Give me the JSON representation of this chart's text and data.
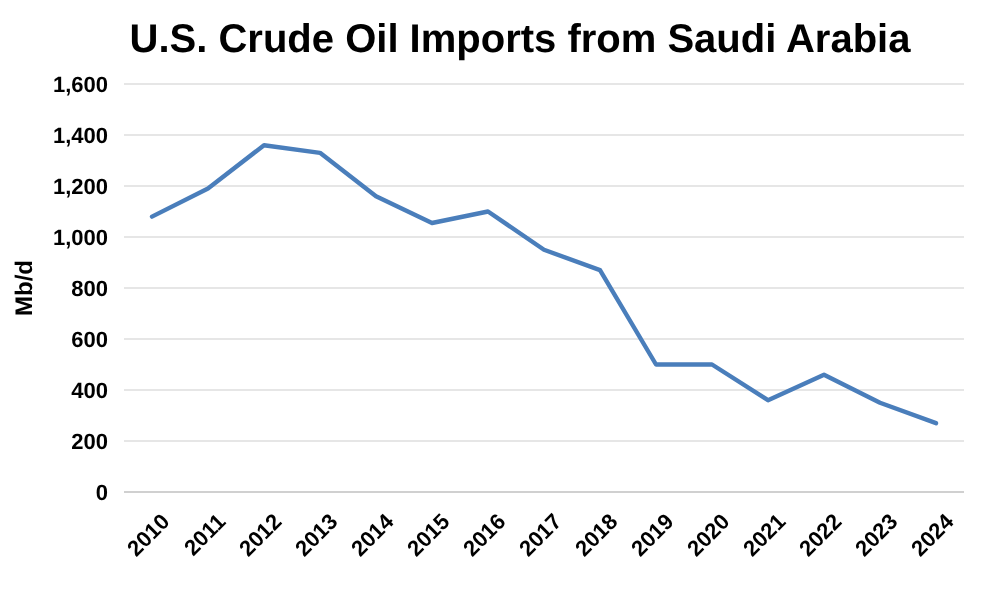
{
  "chart_data": {
    "type": "line",
    "title": "U.S. Crude Oil Imports from Saudi Arabia",
    "ylabel": "Mb/d",
    "categories": [
      "2010",
      "2011",
      "2012",
      "2013",
      "2014",
      "2015",
      "2016",
      "2017",
      "2018",
      "2019",
      "2020",
      "2021",
      "2022",
      "2023",
      "2024"
    ],
    "series": [
      {
        "color": "#4a7ebb",
        "values": [
          1080,
          1190,
          1360,
          1330,
          1160,
          1055,
          1100,
          950,
          870,
          500,
          500,
          360,
          460,
          350,
          270
        ]
      }
    ],
    "ylim": [
      0,
      1600
    ],
    "yticks": [
      {
        "value": 0,
        "label": "0"
      },
      {
        "value": 200,
        "label": "200"
      },
      {
        "value": 400,
        "label": "400"
      },
      {
        "value": 600,
        "label": "600"
      },
      {
        "value": 800,
        "label": "800"
      },
      {
        "value": 1000,
        "label": "1,000"
      },
      {
        "value": 1200,
        "label": "1,200"
      },
      {
        "value": 1400,
        "label": "1,400"
      },
      {
        "value": 1600,
        "label": "1,600"
      }
    ],
    "grid": "y",
    "marker": "none",
    "line_style": "solid"
  }
}
